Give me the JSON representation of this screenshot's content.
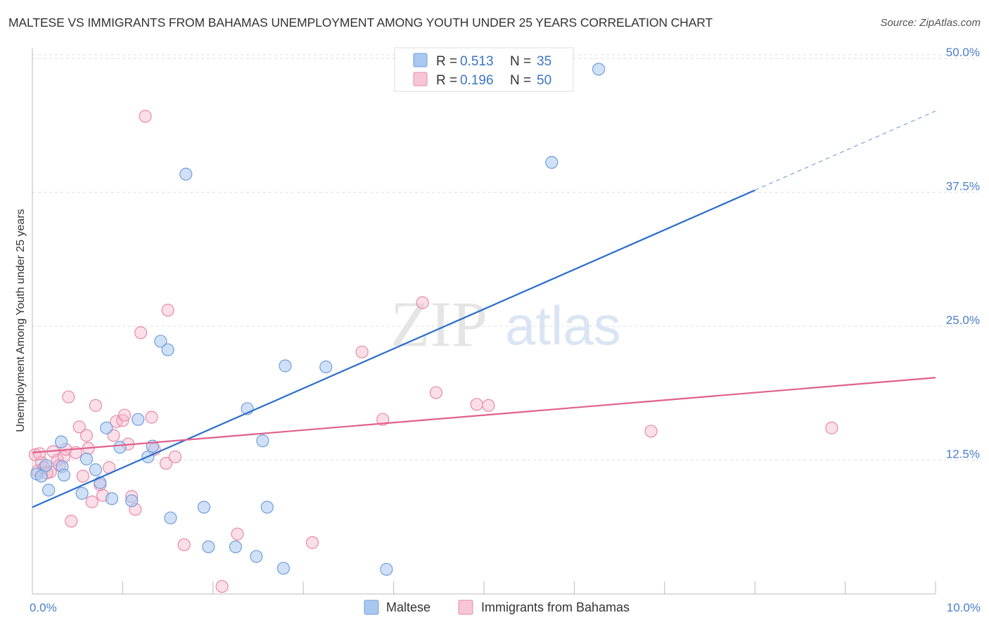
{
  "header": {
    "title": "MALTESE VS IMMIGRANTS FROM BAHAMAS UNEMPLOYMENT AMONG YOUTH UNDER 25 YEARS CORRELATION CHART",
    "source": "Source: ZipAtlas.com"
  },
  "watermark": {
    "zip": "ZIP",
    "atlas": "atlas"
  },
  "colors": {
    "maltese_fill": "#a9c8f0",
    "maltese_stroke": "#6f9fdc",
    "maltese_line": "#2a6ccc",
    "bahamas_fill": "#f6b8cb",
    "bahamas_stroke": "#e88aa8",
    "bahamas_line": "#e0608e",
    "grid": "#dddddd",
    "tick_label": "#4a7fc9"
  },
  "legend": {
    "rows": [
      {
        "r_label": "R = ",
        "r_value": "0.513",
        "n_label": "N = ",
        "n_value": "35"
      },
      {
        "r_label": "R = ",
        "r_value": "0.196",
        "n_label": "N = ",
        "n_value": "50"
      }
    ]
  },
  "chart_data": {
    "type": "scatter",
    "title": "MALTESE VS IMMIGRANTS FROM BAHAMAS UNEMPLOYMENT AMONG YOUTH UNDER 25 YEARS CORRELATION CHART",
    "xlabel": "",
    "ylabel": "Unemployment Among Youth under 25 years",
    "xlim": [
      0,
      10
    ],
    "ylim": [
      0,
      51
    ],
    "x_ticks": [
      0,
      10
    ],
    "x_tick_labels": [
      "0.0%",
      "10.0%"
    ],
    "y_ticks": [
      12.5,
      25,
      37.5,
      50
    ],
    "y_tick_labels": [
      "12.5%",
      "25.0%",
      "37.5%",
      "50.0%"
    ],
    "grid": true,
    "legend_position": "top-center",
    "series": [
      {
        "name": "Maltese",
        "r": 0.513,
        "n": 35,
        "trend": {
          "x0": 0,
          "y0": 8.1,
          "x1": 8.0,
          "y1": 37.7,
          "dashed_to_x": 10.0,
          "dashed_to_y": 45.1
        },
        "points": [
          [
            0.05,
            11.2
          ],
          [
            0.1,
            11.0
          ],
          [
            0.15,
            12.0
          ],
          [
            0.18,
            9.7
          ],
          [
            0.32,
            14.2
          ],
          [
            0.33,
            11.9
          ],
          [
            0.35,
            11.1
          ],
          [
            0.55,
            9.4
          ],
          [
            0.6,
            12.6
          ],
          [
            0.7,
            11.6
          ],
          [
            0.75,
            10.4
          ],
          [
            0.82,
            15.5
          ],
          [
            0.88,
            8.9
          ],
          [
            0.97,
            13.7
          ],
          [
            1.1,
            8.7
          ],
          [
            1.17,
            16.3
          ],
          [
            1.28,
            12.8
          ],
          [
            1.33,
            13.8
          ],
          [
            1.42,
            23.6
          ],
          [
            1.5,
            22.8
          ],
          [
            1.53,
            7.1
          ],
          [
            1.7,
            39.2
          ],
          [
            1.9,
            8.1
          ],
          [
            1.95,
            4.4
          ],
          [
            2.25,
            4.4
          ],
          [
            2.38,
            17.3
          ],
          [
            2.48,
            3.5
          ],
          [
            2.55,
            14.3
          ],
          [
            2.6,
            8.1
          ],
          [
            2.78,
            2.4
          ],
          [
            2.8,
            21.3
          ],
          [
            3.25,
            21.2
          ],
          [
            3.92,
            2.3
          ],
          [
            5.75,
            40.3
          ],
          [
            6.27,
            49.0
          ]
        ]
      },
      {
        "name": "Immigrants from Bahamas",
        "r": 0.196,
        "n": 50,
        "trend": {
          "x0": 0,
          "y0": 13.2,
          "x1": 10.0,
          "y1": 20.2
        },
        "points": [
          [
            0.03,
            13.0
          ],
          [
            0.06,
            11.5
          ],
          [
            0.1,
            12.3
          ],
          [
            0.13,
            11.8
          ],
          [
            0.2,
            11.4
          ],
          [
            0.23,
            13.3
          ],
          [
            0.28,
            12.5
          ],
          [
            0.3,
            12.0
          ],
          [
            0.35,
            12.8
          ],
          [
            0.37,
            13.5
          ],
          [
            0.4,
            18.4
          ],
          [
            0.43,
            6.8
          ],
          [
            0.48,
            13.2
          ],
          [
            0.52,
            15.6
          ],
          [
            0.56,
            11.0
          ],
          [
            0.6,
            14.8
          ],
          [
            0.62,
            13.6
          ],
          [
            0.66,
            8.6
          ],
          [
            0.7,
            17.6
          ],
          [
            0.75,
            10.2
          ],
          [
            0.78,
            9.2
          ],
          [
            0.85,
            11.8
          ],
          [
            0.9,
            14.8
          ],
          [
            0.93,
            16.1
          ],
          [
            1.0,
            16.2
          ],
          [
            1.02,
            16.7
          ],
          [
            1.06,
            14.0
          ],
          [
            1.1,
            9.1
          ],
          [
            1.14,
            7.9
          ],
          [
            1.2,
            24.4
          ],
          [
            1.25,
            44.6
          ],
          [
            1.32,
            16.5
          ],
          [
            1.35,
            13.5
          ],
          [
            1.48,
            12.2
          ],
          [
            1.5,
            26.5
          ],
          [
            1.58,
            12.8
          ],
          [
            1.68,
            4.6
          ],
          [
            2.1,
            0.7
          ],
          [
            2.27,
            5.6
          ],
          [
            3.1,
            4.8
          ],
          [
            3.65,
            22.6
          ],
          [
            3.88,
            16.3
          ],
          [
            4.32,
            27.2
          ],
          [
            4.47,
            18.8
          ],
          [
            4.92,
            17.7
          ],
          [
            5.05,
            17.6
          ],
          [
            6.85,
            15.2
          ],
          [
            8.85,
            15.5
          ],
          [
            0.08,
            13.1
          ],
          [
            0.16,
            11.3
          ]
        ]
      }
    ]
  }
}
